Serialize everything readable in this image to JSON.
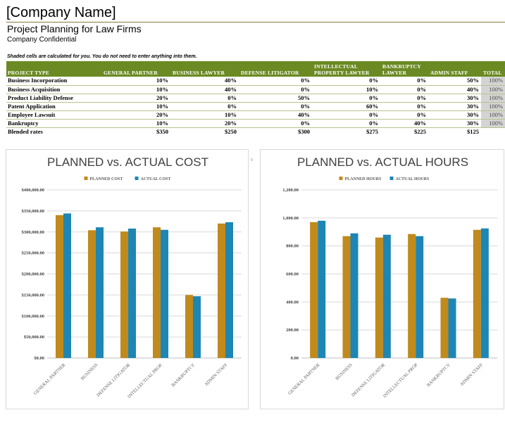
{
  "header": {
    "company": "[Company Name]",
    "project_title": "Project Planning for Law Firms",
    "confidential": "Company Confidential",
    "note": "Shaded cells are calculated for you. You do not need to enter anything into them."
  },
  "table": {
    "columns": [
      "PROJECT TYPE",
      "GENERAL PARTNER",
      "BUSINESS LAWYER",
      "DEFENSE LITIGATOR",
      "INTELLECTUAL PROPERTY LAWYER",
      "BANKRUPTCY LAWYER",
      "ADMIN STAFF",
      "TOTAL"
    ],
    "rows": [
      {
        "name": "Business Incorporation",
        "cells": [
          "10%",
          "40%",
          "0%",
          "0%",
          "0%",
          "50%"
        ],
        "total": "100%"
      },
      {
        "name": "Business Acquisition",
        "cells": [
          "10%",
          "40%",
          "0%",
          "10%",
          "0%",
          "40%"
        ],
        "total": "100%"
      },
      {
        "name": "Product Liability Defense",
        "cells": [
          "20%",
          "0%",
          "50%",
          "0%",
          "0%",
          "30%"
        ],
        "total": "100%"
      },
      {
        "name": "Patent Application",
        "cells": [
          "10%",
          "0%",
          "0%",
          "60%",
          "0%",
          "30%"
        ],
        "total": "100%"
      },
      {
        "name": "Employee Lawsuit",
        "cells": [
          "20%",
          "10%",
          "40%",
          "0%",
          "0%",
          "30%"
        ],
        "total": "100%"
      },
      {
        "name": "Bankruptcy",
        "cells": [
          "10%",
          "20%",
          "0%",
          "0%",
          "40%",
          "30%"
        ],
        "total": "100%"
      }
    ],
    "blended": {
      "name": "Blended rates",
      "cells": [
        "$350",
        "$250",
        "$300",
        "$275",
        "$225",
        "$125"
      ]
    }
  },
  "overflow_text": "0",
  "colors": {
    "planned": "#c08a1c",
    "actual": "#1e86b4",
    "header_bg": "#6b8a23",
    "grid": "#d9d9d9"
  },
  "chart_data": [
    {
      "type": "bar",
      "title": "PLANNED vs. ACTUAL COST",
      "categories": [
        "GENERAL PARTNER",
        "BUSINESS",
        "DEFENSE LITIGATOR",
        "INTELLECTUAL PROP.",
        "BANKRUPTCY",
        "ADMIN STAFF"
      ],
      "series": [
        {
          "name": "PLANNED COST",
          "values": [
            340000,
            304000,
            301000,
            311000,
            150000,
            320000
          ]
        },
        {
          "name": "ACTUAL COST",
          "values": [
            344000,
            311000,
            308000,
            305000,
            147000,
            323000
          ]
        }
      ],
      "ylim": [
        0,
        400000
      ],
      "yticks": [
        "$0.00",
        "$50,000.00",
        "$100,000.00",
        "$150,000.00",
        "$200,000.00",
        "$250,000.00",
        "$300,000.00",
        "$350,000.00",
        "$400,000.00"
      ],
      "grid": true,
      "legend": "top"
    },
    {
      "type": "bar",
      "title": "PLANNED vs. ACTUAL HOURS",
      "categories": [
        "GENERAL PARTNER",
        "BUSINESS",
        "DEFENSE LITIGATOR",
        "INTELLECTUAL PROP",
        "BANKRUPTCY",
        "ADMIN STAFF"
      ],
      "series": [
        {
          "name": "PLANNED HOURS",
          "values": [
            970,
            870,
            860,
            885,
            430,
            915
          ]
        },
        {
          "name": "ACTUAL HOURS",
          "values": [
            980,
            890,
            880,
            870,
            425,
            925
          ]
        }
      ],
      "ylim": [
        0,
        1200
      ],
      "yticks": [
        "0.00",
        "200.00",
        "400.00",
        "600.00",
        "800.00",
        "1,000.00",
        "1,200.00"
      ],
      "grid": true,
      "legend": "top"
    }
  ]
}
